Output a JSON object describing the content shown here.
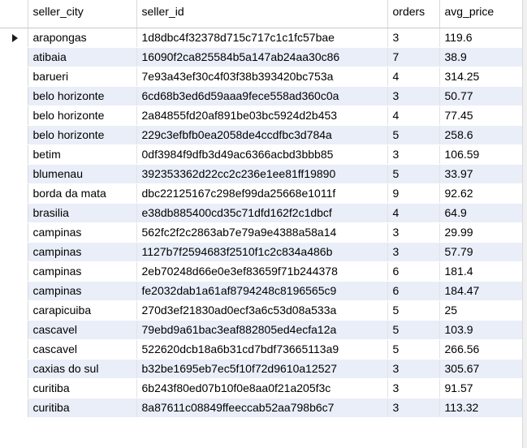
{
  "columns": [
    "seller_city",
    "seller_id",
    "orders",
    "avg_price"
  ],
  "rows": [
    {
      "seller_city": "arapongas",
      "seller_id": "1d8dbc4f32378d715c717c1c1fc57bae",
      "orders": "3",
      "avg_price": "119.6"
    },
    {
      "seller_city": "atibaia",
      "seller_id": "16090f2ca825584b5a147ab24aa30c86",
      "orders": "7",
      "avg_price": "38.9"
    },
    {
      "seller_city": "barueri",
      "seller_id": "7e93a43ef30c4f03f38b393420bc753a",
      "orders": "4",
      "avg_price": "314.25"
    },
    {
      "seller_city": "belo horizonte",
      "seller_id": "6cd68b3ed6d59aaa9fece558ad360c0a",
      "orders": "3",
      "avg_price": "50.77"
    },
    {
      "seller_city": "belo horizonte",
      "seller_id": "2a84855fd20af891be03bc5924d2b453",
      "orders": "4",
      "avg_price": "77.45"
    },
    {
      "seller_city": "belo horizonte",
      "seller_id": "229c3efbfb0ea2058de4ccdfbc3d784a",
      "orders": "5",
      "avg_price": "258.6"
    },
    {
      "seller_city": "betim",
      "seller_id": "0df3984f9dfb3d49ac6366acbd3bbb85",
      "orders": "3",
      "avg_price": "106.59"
    },
    {
      "seller_city": "blumenau",
      "seller_id": "392353362d22cc2c236e1ee81ff19890",
      "orders": "5",
      "avg_price": "33.97"
    },
    {
      "seller_city": "borda da mata",
      "seller_id": "dbc22125167c298ef99da25668e1011f",
      "orders": "9",
      "avg_price": "92.62"
    },
    {
      "seller_city": "brasilia",
      "seller_id": "e38db885400cd35c71dfd162f2c1dbcf",
      "orders": "4",
      "avg_price": "64.9"
    },
    {
      "seller_city": "campinas",
      "seller_id": "562fc2f2c2863ab7e79a9e4388a58a14",
      "orders": "3",
      "avg_price": "29.99"
    },
    {
      "seller_city": "campinas",
      "seller_id": "1127b7f2594683f2510f1c2c834a486b",
      "orders": "3",
      "avg_price": "57.79"
    },
    {
      "seller_city": "campinas",
      "seller_id": "2eb70248d66e0e3ef83659f71b244378",
      "orders": "6",
      "avg_price": "181.4"
    },
    {
      "seller_city": "campinas",
      "seller_id": "fe2032dab1a61af8794248c8196565c9",
      "orders": "6",
      "avg_price": "184.47"
    },
    {
      "seller_city": "carapicuiba",
      "seller_id": "270d3ef21830ad0ecf3a6c53d08a533a",
      "orders": "5",
      "avg_price": "25"
    },
    {
      "seller_city": "cascavel",
      "seller_id": "79ebd9a61bac3eaf882805ed4ecfa12a",
      "orders": "5",
      "avg_price": "103.9"
    },
    {
      "seller_city": "cascavel",
      "seller_id": "522620dcb18a6b31cd7bdf73665113a9",
      "orders": "5",
      "avg_price": "266.56"
    },
    {
      "seller_city": "caxias do sul",
      "seller_id": "b32be1695eb7ec5f10f72d9610a12527",
      "orders": "3",
      "avg_price": "305.67"
    },
    {
      "seller_city": "curitiba",
      "seller_id": "6b243f80ed07b10f0e8aa0f21a205f3c",
      "orders": "3",
      "avg_price": "91.57"
    },
    {
      "seller_city": "curitiba",
      "seller_id": "8a87611c08849ffeeccab52aa798b6c7",
      "orders": "3",
      "avg_price": "113.32"
    }
  ],
  "current_row_index": 0,
  "colors": {
    "row_alt": "#e9eef8",
    "row": "#ffffff",
    "pointer": "#1a1a1a"
  },
  "icons": {
    "row_pointer": "current-row-pointer-icon"
  }
}
